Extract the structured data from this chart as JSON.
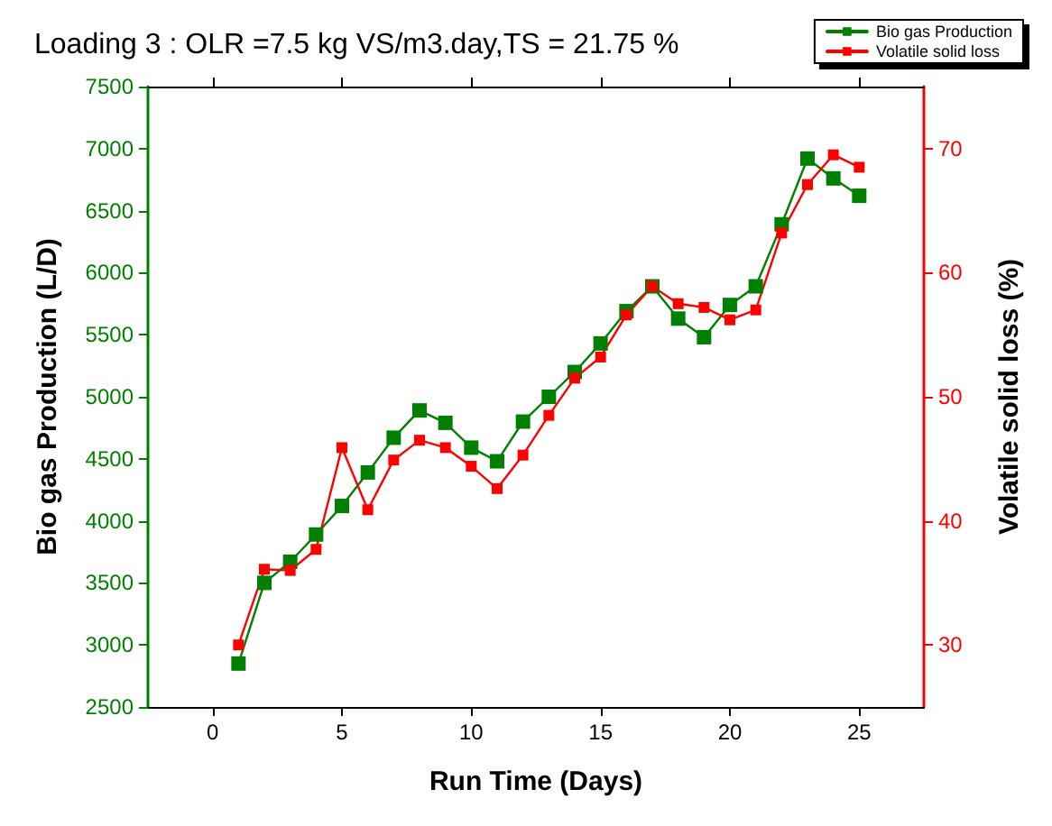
{
  "chart_data": {
    "type": "line",
    "title": "Loading 3 : OLR =7.5 kg VS/m3.day,TS = 21.75 %",
    "xlabel": "Run Time (Days)",
    "ylabel": "Bio gas Production (L/D)",
    "y2label": "Volatile solid loss (%)",
    "x": [
      1,
      2,
      3,
      4,
      5,
      6,
      7,
      8,
      9,
      10,
      11,
      12,
      13,
      14,
      15,
      16,
      17,
      18,
      19,
      20,
      21,
      22,
      23,
      24,
      25
    ],
    "series": [
      {
        "name": "Bio gas Production",
        "color": "#008000",
        "values": [
          2850,
          3500,
          3670,
          3890,
          4120,
          4390,
          4670,
          4890,
          4790,
          4590,
          4480,
          4800,
          5000,
          5200,
          5430,
          5690,
          5890,
          5630,
          5480,
          5740,
          5890,
          6390,
          6920,
          6760,
          6620
        ]
      },
      {
        "name": "Volatile solid loss",
        "color": "#ff0000",
        "axis": "y2",
        "values": [
          30.0,
          36.1,
          36.0,
          37.7,
          45.9,
          40.9,
          44.9,
          46.5,
          45.9,
          44.4,
          42.6,
          45.3,
          48.5,
          51.5,
          53.2,
          56.6,
          58.9,
          57.5,
          57.2,
          56.2,
          57.0,
          63.2,
          67.1,
          69.5,
          68.5
        ]
      }
    ],
    "xlim": [
      -2.5,
      27.5
    ],
    "xticks": [
      0,
      5,
      10,
      15,
      20,
      25
    ],
    "ylim": [
      2500,
      7500
    ],
    "yticks": [
      2500,
      3000,
      3500,
      4000,
      4500,
      5000,
      5500,
      6000,
      6500,
      7000,
      7500
    ],
    "y2lim": [
      25,
      75
    ],
    "y2ticks": [
      30,
      40,
      50,
      60,
      70
    ],
    "legend": "top right",
    "grid": false,
    "marker": "square",
    "line_style": "solid"
  }
}
